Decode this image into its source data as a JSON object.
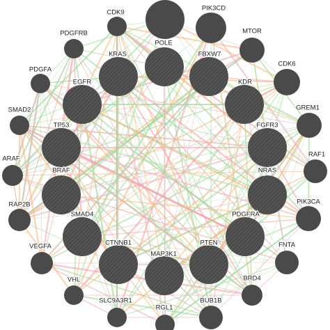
{
  "nodes": [
    {
      "label": "CDK9"
    },
    {
      "label": "PIK3CD"
    },
    {
      "label": "MTOR"
    },
    {
      "label": "CDK6"
    },
    {
      "label": "GREM1"
    },
    {
      "label": "RAF1"
    },
    {
      "label": "PIK3CA"
    },
    {
      "label": "FNTA"
    },
    {
      "label": "BRD4"
    },
    {
      "label": "BUB1B"
    },
    {
      "label": "RGL1"
    },
    {
      "label": "SLC9A3R1"
    },
    {
      "label": "VHL"
    },
    {
      "label": "VEGFA"
    },
    {
      "label": "RAP2B"
    },
    {
      "label": "ARAF"
    },
    {
      "label": "SMAD2"
    },
    {
      "label": "PDGFA"
    },
    {
      "label": "PDGFRB"
    },
    {
      "label": "POLE"
    },
    {
      "label": "FBXW7"
    },
    {
      "label": "KDR"
    },
    {
      "label": "FGFR3"
    },
    {
      "label": "NRAS"
    },
    {
      "label": "PDGFRA"
    },
    {
      "label": "PTEN"
    },
    {
      "label": "MAP3K1"
    },
    {
      "label": "CTNNB1"
    },
    {
      "label": "SMAD4"
    },
    {
      "label": "BRAF"
    },
    {
      "label": "TP53"
    },
    {
      "label": "EGFR"
    },
    {
      "label": "KRAS"
    }
  ]
}
